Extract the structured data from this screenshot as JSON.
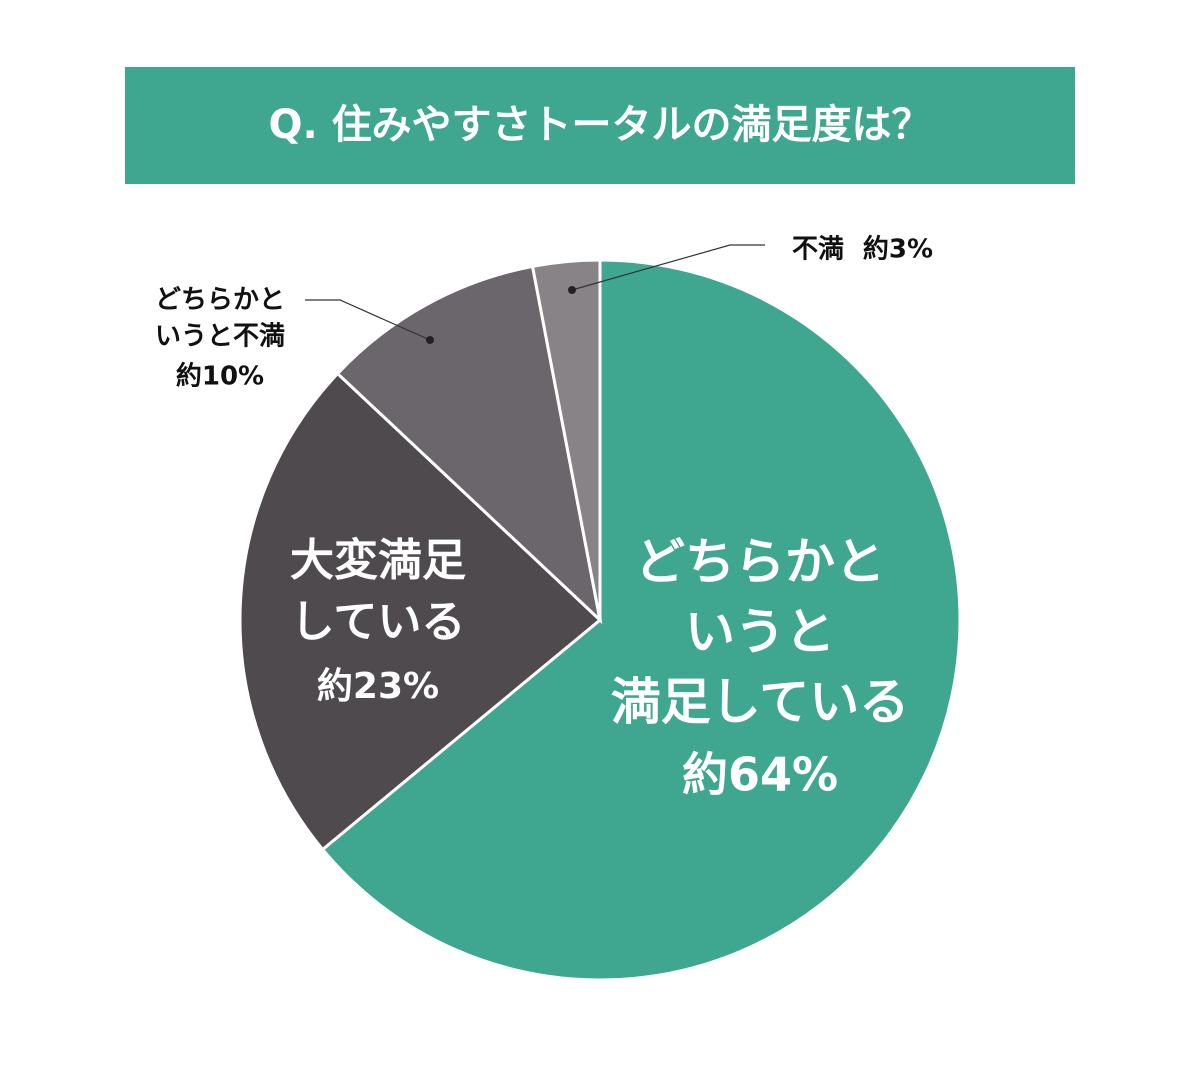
{
  "chart_data": {
    "type": "pie",
    "title": "Q. 住みやすさトータルの満足度は？",
    "categories": [
      "どちらかと\nいうと\n満足している",
      "大変満足\nしている",
      "どちらかと\nいうと不満",
      "不満"
    ],
    "values": [
      64,
      23,
      10,
      3
    ],
    "value_labels": [
      "約64%",
      "約23%",
      "約10%",
      "約3%"
    ],
    "colors": [
      "#3fa68f",
      "#4e4a4e",
      "#6b666b",
      "#888386"
    ]
  }
}
